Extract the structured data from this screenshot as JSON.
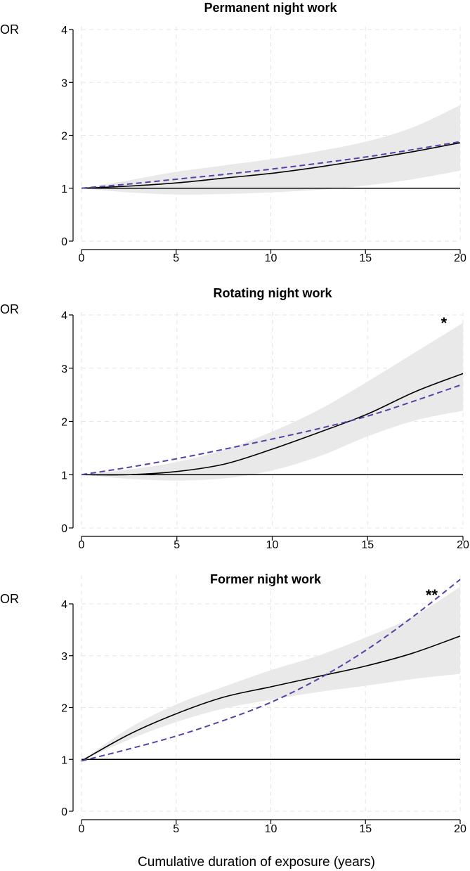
{
  "chart_data": [
    {
      "type": "line",
      "title": "Permanent night work",
      "ylabel": "OR",
      "xlabel": "",
      "xlim": [
        0,
        20
      ],
      "ylim": [
        0,
        4
      ],
      "xticks": [
        0,
        5,
        10,
        15,
        20
      ],
      "yticks": [
        0,
        1,
        2,
        3,
        4
      ],
      "grid": true,
      "annotation": "",
      "x": [
        0,
        2.5,
        5,
        7.5,
        10,
        12.5,
        15,
        17.5,
        20
      ],
      "reference": 1,
      "series": [
        {
          "style": "solid",
          "color": "#000000",
          "values": [
            1.0,
            1.04,
            1.1,
            1.19,
            1.28,
            1.4,
            1.54,
            1.69,
            1.86
          ]
        },
        {
          "style": "dashed",
          "color": "#5b3fa6",
          "values": [
            1.0,
            1.08,
            1.17,
            1.26,
            1.36,
            1.47,
            1.59,
            1.73,
            1.88
          ]
        }
      ],
      "ci_lower": [
        1.0,
        0.92,
        0.88,
        0.89,
        0.92,
        0.97,
        1.05,
        1.17,
        1.33
      ],
      "ci_upper": [
        1.0,
        1.15,
        1.31,
        1.43,
        1.55,
        1.7,
        1.88,
        2.15,
        2.57
      ]
    },
    {
      "type": "line",
      "title": "Rotating night work",
      "ylabel": "OR",
      "xlabel": "",
      "xlim": [
        0,
        20
      ],
      "ylim": [
        0,
        4
      ],
      "xticks": [
        0,
        5,
        10,
        15,
        20
      ],
      "yticks": [
        0,
        1,
        2,
        3,
        4
      ],
      "grid": true,
      "annotation": "*",
      "annotation_x": 19,
      "x": [
        0,
        2.5,
        5,
        7.5,
        10,
        12.5,
        15,
        17.5,
        20
      ],
      "reference": 1,
      "series": [
        {
          "style": "solid",
          "color": "#000000",
          "values": [
            1.0,
            1.0,
            1.06,
            1.2,
            1.48,
            1.8,
            2.14,
            2.56,
            2.9
          ]
        },
        {
          "style": "dashed",
          "color": "#5b3fa6",
          "values": [
            1.0,
            1.14,
            1.3,
            1.48,
            1.67,
            1.87,
            2.1,
            2.39,
            2.7
          ]
        }
      ],
      "ci_lower": [
        1.0,
        0.92,
        0.89,
        0.93,
        1.08,
        1.35,
        1.72,
        2.02,
        2.2
      ],
      "ci_upper": [
        1.0,
        1.1,
        1.24,
        1.47,
        1.81,
        2.23,
        2.75,
        3.3,
        3.85
      ]
    },
    {
      "type": "line",
      "title": "Former night work",
      "ylabel": "OR",
      "xlabel": "Cumulative duration of exposure (years)",
      "xlim": [
        0,
        20
      ],
      "ylim": [
        0,
        4.5
      ],
      "xticks": [
        0,
        5,
        10,
        15,
        20
      ],
      "yticks": [
        0,
        1,
        2,
        3,
        4
      ],
      "grid": true,
      "annotation": "**",
      "annotation_x": 18.5,
      "x": [
        0,
        2.5,
        5,
        7.5,
        10,
        12.5,
        15,
        17.5,
        20
      ],
      "reference": 1,
      "series": [
        {
          "style": "solid",
          "color": "#000000",
          "values": [
            0.97,
            1.48,
            1.88,
            2.2,
            2.4,
            2.6,
            2.8,
            3.05,
            3.38
          ]
        },
        {
          "style": "dashed",
          "color": "#5b3fa6",
          "values": [
            0.97,
            1.2,
            1.45,
            1.75,
            2.1,
            2.55,
            3.1,
            3.75,
            4.47
          ]
        }
      ],
      "ci_lower": [
        0.97,
        1.38,
        1.72,
        1.98,
        2.15,
        2.3,
        2.42,
        2.55,
        2.65
      ],
      "ci_upper": [
        0.97,
        1.6,
        2.06,
        2.4,
        2.72,
        3.0,
        3.35,
        3.75,
        4.33
      ]
    }
  ]
}
